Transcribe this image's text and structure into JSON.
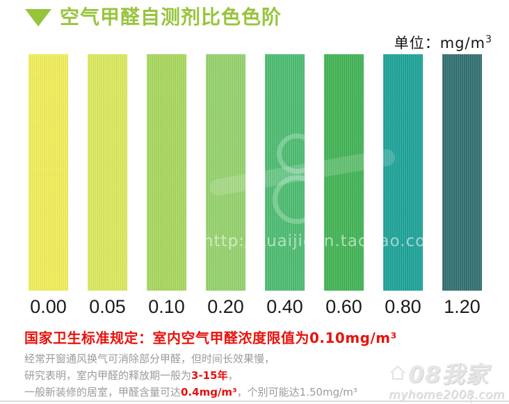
{
  "header": {
    "title": "空气甲醛自测剂比色色阶"
  },
  "unit": {
    "label": "单位：mg/m",
    "sup": "3"
  },
  "chart_data": {
    "type": "heatmap",
    "title": "空气甲醛自测剂比色色阶",
    "unit": "mg/m³",
    "categories": [
      "0.00",
      "0.05",
      "0.10",
      "0.20",
      "0.40",
      "0.60",
      "0.80",
      "1.20"
    ],
    "values": [
      0.0,
      0.05,
      0.1,
      0.2,
      0.4,
      0.6,
      0.8,
      1.2
    ],
    "colors": [
      "#f2ef5a",
      "#dcea5e",
      "#a9d95f",
      "#96d36e",
      "#4dbd72",
      "#43b556",
      "#1ea49a",
      "#337173"
    ],
    "legend_position": "none",
    "grid": false
  },
  "notes": {
    "heading": "国家卫生标准规定：室内空气甲醛浓度限值为0.10mg/m³",
    "heading_color": "#e8130d",
    "lines": [
      [
        {
          "t": "经常开窗通风换气可消除部分甲醛，但时间长效果慢，"
        }
      ],
      [
        {
          "t": "研究表明，室内甲醛的释放期一般为"
        },
        {
          "t": "3-15年",
          "em": true
        },
        {
          "t": "，"
        }
      ],
      [
        {
          "t": "一般新装修的居室，甲醛含量可达"
        },
        {
          "t": "0.4mg/m³",
          "em": true
        },
        {
          "t": "，个别可能达1.50mg/m³"
        }
      ]
    ]
  },
  "watermarks": {
    "center_url": "http://kuaijielin.taobao.com",
    "site_name": "08我家",
    "site_url": "myhome2008.com"
  },
  "colors": {
    "title_green": "#98c43c",
    "accent_red": "#e60f0f",
    "body_gray": "#9b9b9b",
    "value_text": "#1a1a1a"
  }
}
